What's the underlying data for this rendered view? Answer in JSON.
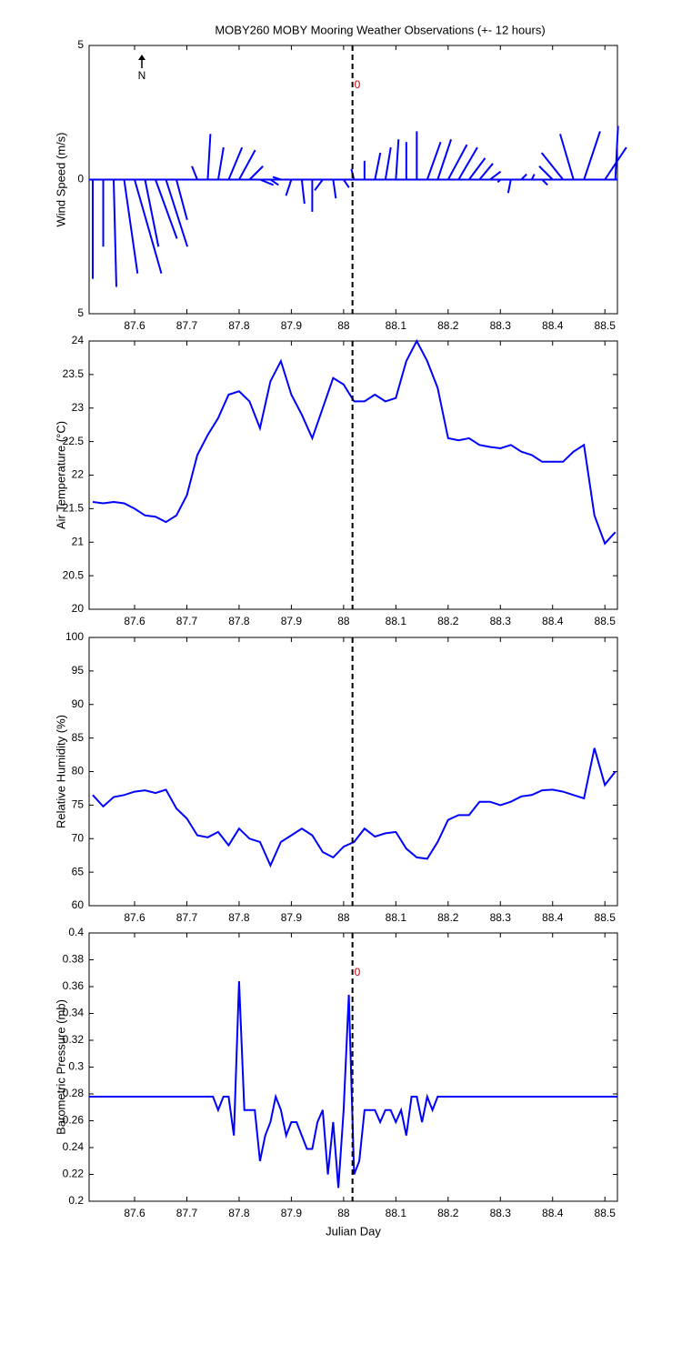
{
  "chart_data": [
    {
      "type": "stick",
      "title": "MOBY260 MOBY Mooring Weather Observations (+- 12 hours)",
      "ylabel": "Wind Speed (m/s)",
      "north_label": "N",
      "reference_x": 88.017,
      "reference_label": "0",
      "color": "#0000ff",
      "xlim": [
        87.513,
        88.524
      ],
      "xticks": [
        87.6,
        87.7,
        87.8,
        87.9,
        88,
        88.1,
        88.2,
        88.3,
        88.4,
        88.5
      ],
      "ylim": [
        -5,
        5
      ],
      "yticks": [
        5,
        0,
        {
          "value": -5,
          "label": "5"
        }
      ],
      "x": [
        87.52,
        87.54,
        87.56,
        87.58,
        87.6,
        87.62,
        87.64,
        87.66,
        87.68,
        87.7,
        87.72,
        87.74,
        87.76,
        87.78,
        87.8,
        87.82,
        87.84,
        87.86,
        87.88,
        87.9,
        87.92,
        87.94,
        87.96,
        87.98,
        88,
        88.02,
        88.04,
        88.06,
        88.08,
        88.1,
        88.12,
        88.14,
        88.16,
        88.18,
        88.2,
        88.22,
        88.24,
        88.26,
        88.28,
        88.3,
        88.32,
        88.34,
        88.36,
        88.38,
        88.4,
        88.42,
        88.44,
        88.46,
        88.48,
        88.5,
        88.52
      ],
      "u": [
        0,
        0,
        0.1,
        0.5,
        1.0,
        0.5,
        0.8,
        0.8,
        0.4,
        0,
        -0.2,
        0.1,
        0.2,
        0.5,
        0.6,
        0.5,
        0.5,
        0.3,
        -0.3,
        -0.2,
        0.1,
        0,
        -0.3,
        0.1,
        0.2,
        -0.1,
        0,
        0.2,
        0.2,
        0.1,
        0,
        0,
        0.5,
        0.5,
        0.7,
        0.7,
        0.6,
        0.5,
        0.4,
        -0.1,
        -0.1,
        0.2,
        0.1,
        0.2,
        -0.5,
        -0.8,
        -0.5,
        0.6,
        0.2,
        0.8,
        0.1
      ],
      "v": [
        -3.7,
        -2.5,
        -4,
        -3.5,
        -3.5,
        -2.5,
        -2.2,
        -2.5,
        -1.5,
        0,
        0.5,
        1.7,
        1.2,
        1.2,
        1.1,
        0.5,
        -0.2,
        -0.2,
        0.1,
        -0.6,
        -0.9,
        -1.2,
        -0.4,
        -0.7,
        -0.3,
        0.4,
        0.7,
        1.0,
        1.2,
        1.5,
        1.4,
        1.8,
        1.4,
        1.5,
        1.3,
        1.2,
        0.8,
        0.6,
        0.3,
        -0.1,
        -0.5,
        0.2,
        0.2,
        -0.2,
        0.5,
        1.0,
        1.7,
        1.8,
        0,
        1.2,
        2.0
      ]
    },
    {
      "type": "line",
      "ylabel": "Air Temperature (°C)",
      "reference_x": 88.017,
      "color": "#0000ff",
      "xlim": [
        87.513,
        88.524
      ],
      "xticks": [
        87.6,
        87.7,
        87.8,
        87.9,
        88,
        88.1,
        88.2,
        88.3,
        88.4,
        88.5
      ],
      "ylim": [
        20,
        24
      ],
      "yticks": [
        20,
        20.5,
        21,
        21.5,
        22,
        22.5,
        23,
        23.5,
        24
      ],
      "x": [
        87.52,
        87.54,
        87.56,
        87.58,
        87.6,
        87.62,
        87.64,
        87.66,
        87.68,
        87.7,
        87.72,
        87.74,
        87.76,
        87.78,
        87.8,
        87.82,
        87.84,
        87.86,
        87.88,
        87.9,
        87.92,
        87.94,
        87.96,
        87.98,
        88,
        88.02,
        88.04,
        88.06,
        88.08,
        88.1,
        88.12,
        88.14,
        88.16,
        88.18,
        88.2,
        88.22,
        88.24,
        88.26,
        88.28,
        88.3,
        88.32,
        88.34,
        88.36,
        88.38,
        88.4,
        88.42,
        88.44,
        88.46,
        88.48,
        88.5,
        88.52
      ],
      "values": [
        21.6,
        21.58,
        21.6,
        21.58,
        21.5,
        21.4,
        21.38,
        21.3,
        21.4,
        21.7,
        22.3,
        22.6,
        22.85,
        23.2,
        23.25,
        23.1,
        22.7,
        23.4,
        23.7,
        23.2,
        22.9,
        22.55,
        23.0,
        23.45,
        23.35,
        23.1,
        23.1,
        23.2,
        23.1,
        23.15,
        23.7,
        24.0,
        23.7,
        23.3,
        22.55,
        22.52,
        22.55,
        22.45,
        22.42,
        22.4,
        22.45,
        22.35,
        22.3,
        22.2,
        22.2,
        22.2,
        22.35,
        22.45,
        21.4,
        20.98,
        21.15
      ]
    },
    {
      "type": "line",
      "ylabel": "Relative Humidity (%)",
      "reference_x": 88.017,
      "color": "#0000ff",
      "xlim": [
        87.513,
        88.524
      ],
      "xticks": [
        87.6,
        87.7,
        87.8,
        87.9,
        88,
        88.1,
        88.2,
        88.3,
        88.4,
        88.5
      ],
      "ylim": [
        60,
        100
      ],
      "yticks": [
        60,
        65,
        70,
        75,
        80,
        85,
        90,
        95,
        100
      ],
      "x": [
        87.52,
        87.54,
        87.56,
        87.58,
        87.6,
        87.62,
        87.64,
        87.66,
        87.68,
        87.7,
        87.72,
        87.74,
        87.76,
        87.78,
        87.8,
        87.82,
        87.84,
        87.86,
        87.88,
        87.9,
        87.92,
        87.94,
        87.96,
        87.98,
        88,
        88.02,
        88.04,
        88.06,
        88.08,
        88.1,
        88.12,
        88.14,
        88.16,
        88.18,
        88.2,
        88.22,
        88.24,
        88.26,
        88.28,
        88.3,
        88.32,
        88.34,
        88.36,
        88.38,
        88.4,
        88.42,
        88.44,
        88.46,
        88.48,
        88.5,
        88.52
      ],
      "values": [
        76.5,
        74.8,
        76.2,
        76.5,
        77,
        77.2,
        76.8,
        77.3,
        74.5,
        73,
        70.5,
        70.2,
        71,
        69,
        71.5,
        70,
        69.5,
        66,
        69.5,
        70.5,
        71.5,
        70.5,
        68,
        67.2,
        68.8,
        69.5,
        71.5,
        70.3,
        70.8,
        71,
        68.5,
        67.2,
        67,
        69.5,
        72.8,
        73.5,
        73.5,
        75.5,
        75.5,
        75,
        75.5,
        76.3,
        76.5,
        77.2,
        77.3,
        77,
        76.5,
        76,
        83.5,
        78,
        80
      ]
    },
    {
      "type": "line",
      "ylabel": "Barometric Pressure (mb)",
      "xlabel": "Julian Day",
      "reference_x": 88.017,
      "reference_label": "0",
      "color": "#0000ff",
      "xlim": [
        87.513,
        88.524
      ],
      "xticks": [
        87.6,
        87.7,
        87.8,
        87.9,
        88,
        88.1,
        88.2,
        88.3,
        88.4,
        88.5
      ],
      "ylim": [
        0.2,
        0.4
      ],
      "yticks": [
        0.2,
        0.22,
        0.24,
        0.26,
        0.28,
        0.3,
        0.32,
        0.34,
        0.36,
        0.38,
        0.4
      ],
      "x": [
        87.513,
        87.75,
        87.76,
        87.77,
        87.78,
        87.79,
        87.8,
        87.81,
        87.83,
        87.84,
        87.85,
        87.86,
        87.87,
        87.88,
        87.89,
        87.9,
        87.91,
        87.93,
        87.94,
        87.95,
        87.96,
        87.97,
        87.98,
        87.99,
        88,
        88.01,
        88.02,
        88.03,
        88.04,
        88.06,
        88.07,
        88.08,
        88.09,
        88.1,
        88.11,
        88.12,
        88.13,
        88.14,
        88.15,
        88.16,
        88.17,
        88.18,
        88.524
      ],
      "values": [
        0.278,
        0.278,
        0.268,
        0.278,
        0.278,
        0.249,
        0.364,
        0.268,
        0.268,
        0.23,
        0.249,
        0.259,
        0.278,
        0.268,
        0.249,
        0.259,
        0.259,
        0.239,
        0.239,
        0.259,
        0.268,
        0.22,
        0.259,
        0.21,
        0.268,
        0.354,
        0.22,
        0.23,
        0.268,
        0.268,
        0.259,
        0.268,
        0.268,
        0.259,
        0.268,
        0.249,
        0.278,
        0.278,
        0.259,
        0.278,
        0.268,
        0.278,
        0.278
      ]
    }
  ]
}
